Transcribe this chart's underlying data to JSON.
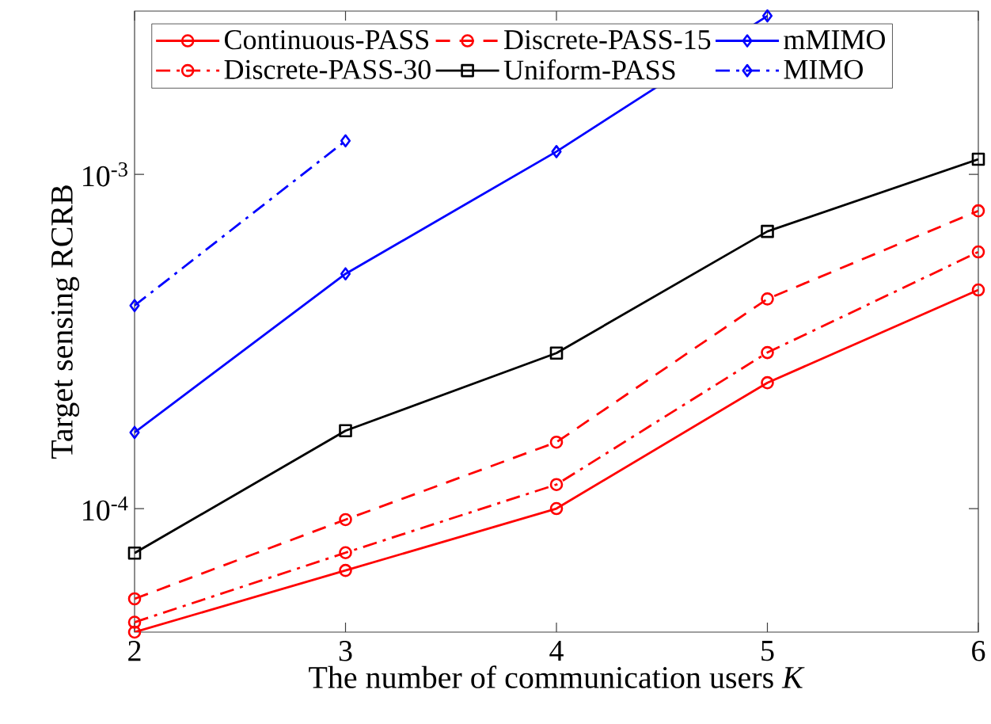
{
  "chart_data": {
    "type": "line",
    "xlabel": "The number of communication users *K*",
    "ylabel": "Target sensing RCRB",
    "x": [
      2,
      3,
      4,
      5,
      6
    ],
    "xlim": [
      2,
      6
    ],
    "xticks": [
      2,
      3,
      4,
      5,
      6
    ],
    "ylim": [
      4.27e-05,
      0.00308
    ],
    "yticks": [
      {
        "value": 0.0001,
        "label": "10$^{-4}$"
      },
      {
        "value": 0.001,
        "label": "10$^{-3}$"
      }
    ],
    "log": "y",
    "grid": false,
    "legend": "top left",
    "series": [
      {
        "name": "Continuous-PASS",
        "color": "#ff0000",
        "marker": "circle",
        "line_style": "solid",
        "values": [
          4.27e-05,
          6.53e-05,
          0.0001,
          0.000238,
          0.000451
        ]
      },
      {
        "name": "Discrete-PASS-30",
        "color": "#ff0000",
        "marker": "circle",
        "line_style": "dashdot",
        "values": [
          4.57e-05,
          7.38e-05,
          0.000118,
          0.000293,
          0.000586
        ]
      },
      {
        "name": "Discrete-PASS-15",
        "color": "#ff0000",
        "marker": "circle",
        "line_style": "dashed",
        "values": [
          5.37e-05,
          9.27e-05,
          0.000158,
          0.000424,
          0.000778
        ]
      },
      {
        "name": "Uniform-PASS",
        "color": "#000000",
        "marker": "square",
        "line_style": "solid",
        "values": [
          7.36e-05,
          0.000171,
          0.000292,
          0.000675,
          0.00111
        ]
      },
      {
        "name": "mMIMO",
        "color": "#0000ff",
        "marker": "diamond",
        "line_style": "solid",
        "values": [
          0.000169,
          0.000504,
          0.00117,
          0.00298,
          null
        ]
      },
      {
        "name": "MIMO",
        "color": "#0000ff",
        "marker": "diamond",
        "line_style": "dashdot",
        "values": [
          0.000405,
          0.00126,
          null,
          null,
          null
        ]
      }
    ]
  }
}
